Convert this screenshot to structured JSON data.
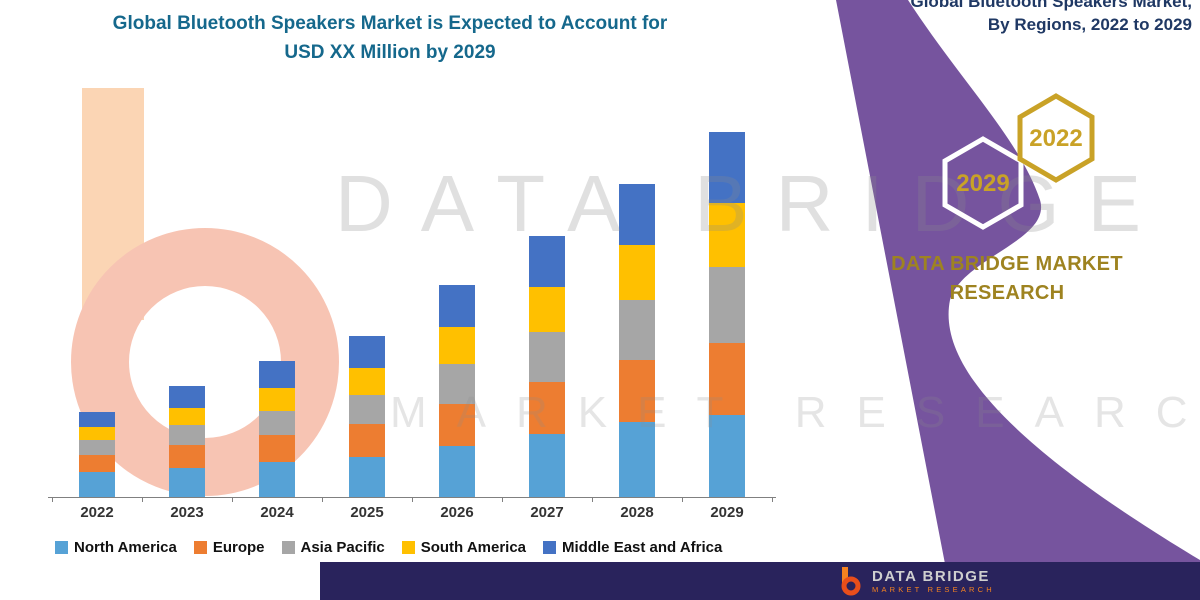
{
  "header": {
    "title_line1": "Global Bluetooth Speakers Market is Expected to Account for",
    "title_line2": "USD XX Million by 2029",
    "top_right_line1": "Global Bluetooth Speakers Market,",
    "top_right_line2": "By Regions, 2022 to 2029"
  },
  "branding": {
    "hexagon_left_label": "2029",
    "hexagon_right_label": "2022",
    "company_line1": "DATA BRIDGE MARKET",
    "company_line2": "RESEARCH",
    "footer_brand": "DATA BRIDGE",
    "footer_sub": "MARKET RESEARCH",
    "watermark_line1": "DATA BRIDGE",
    "watermark_line2": "MARKET RESEARCH"
  },
  "colors": {
    "title_teal": "#15688C",
    "caption_navy": "#1F3864",
    "band_purple": "#76549E",
    "gold": "#C9A227",
    "company_gold": "#9E8320",
    "footer_navy": "#29235C",
    "logo_orange": "#F58220",
    "logo_red": "#E94E1B",
    "axis_gray": "#808080"
  },
  "chart_data": {
    "type": "bar",
    "stacked": true,
    "title": "Global Bluetooth Speakers Market is Expected to Account for USD XX Million by 2029",
    "xlabel": "",
    "ylabel": "",
    "y_axis_visible": false,
    "grid": false,
    "legend_position": "bottom",
    "value_unit": "USD Million (values masked as XX)",
    "categories": [
      "2022",
      "2023",
      "2024",
      "2025",
      "2026",
      "2027",
      "2028",
      "2029"
    ],
    "series": [
      {
        "name": "North America",
        "color": "#56A2D6",
        "values": [
          25,
          30,
          36,
          41,
          52,
          64,
          76,
          84
        ]
      },
      {
        "name": "Europe",
        "color": "#ED7D31",
        "values": [
          18,
          23,
          27,
          33,
          43,
          53,
          64,
          73
        ]
      },
      {
        "name": "Asia Pacific",
        "color": "#A6A6A6",
        "values": [
          15,
          20,
          25,
          30,
          41,
          51,
          61,
          77
        ]
      },
      {
        "name": "South America",
        "color": "#FFC000",
        "values": [
          13,
          18,
          23,
          28,
          37,
          46,
          56,
          66
        ]
      },
      {
        "name": "Middle East and Africa",
        "color": "#4472C4",
        "values": [
          16,
          22,
          28,
          32,
          43,
          52,
          62,
          72
        ]
      }
    ],
    "totals_relative": [
      87,
      113,
      139,
      164,
      216,
      266,
      319,
      372
    ]
  }
}
